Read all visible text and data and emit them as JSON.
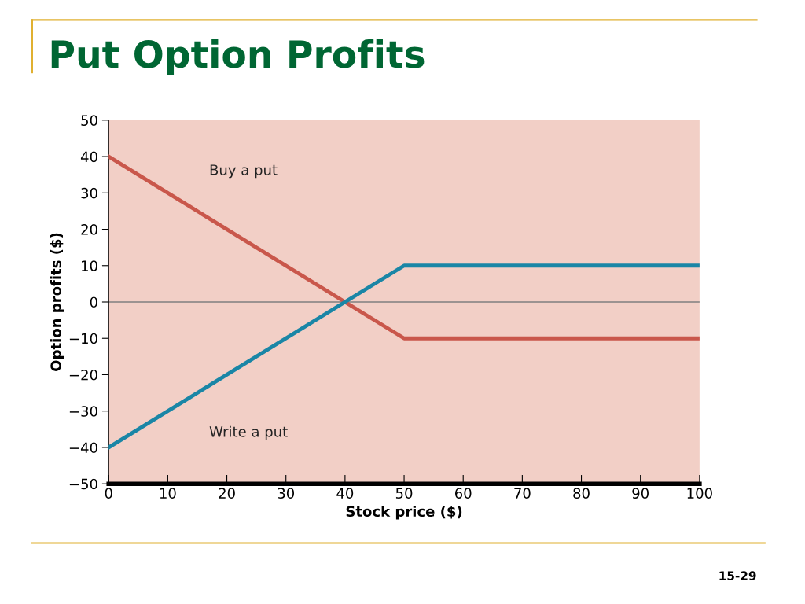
{
  "chart_data": {
    "type": "line",
    "title": "Put Option Profits",
    "xlabel": "Stock price ($)",
    "ylabel": "Option profits ($)",
    "annotations": [
      "15-29"
    ],
    "series": [
      {
        "name": "Buy a put",
        "color": "#c9574b",
        "x": [
          0,
          50,
          100
        ],
        "values": [
          40,
          -10,
          -10
        ]
      },
      {
        "name": "Write a put",
        "color": "#1a86a6",
        "x": [
          0,
          50,
          100
        ],
        "values": [
          -40,
          10,
          10
        ]
      }
    ],
    "xlim": [
      0,
      100
    ],
    "xticks": [
      0,
      10,
      20,
      30,
      40,
      50,
      60,
      70,
      80,
      90,
      100
    ],
    "ylim": [
      -50,
      50
    ],
    "yticks": [
      {
        "value": -50,
        "label": "−50"
      },
      {
        "value": -40,
        "label": "−40"
      },
      {
        "value": -30,
        "label": "−30"
      },
      {
        "value": -20,
        "label": "−20"
      },
      {
        "value": -10,
        "label": "−10"
      },
      0,
      10,
      20,
      30,
      40,
      50
    ],
    "ref_lines": [
      {
        "axis": "y",
        "value": 0,
        "color": "#7f7f7f"
      }
    ],
    "grid": false,
    "legend": false,
    "marker": "none",
    "line_style": "solid"
  }
}
